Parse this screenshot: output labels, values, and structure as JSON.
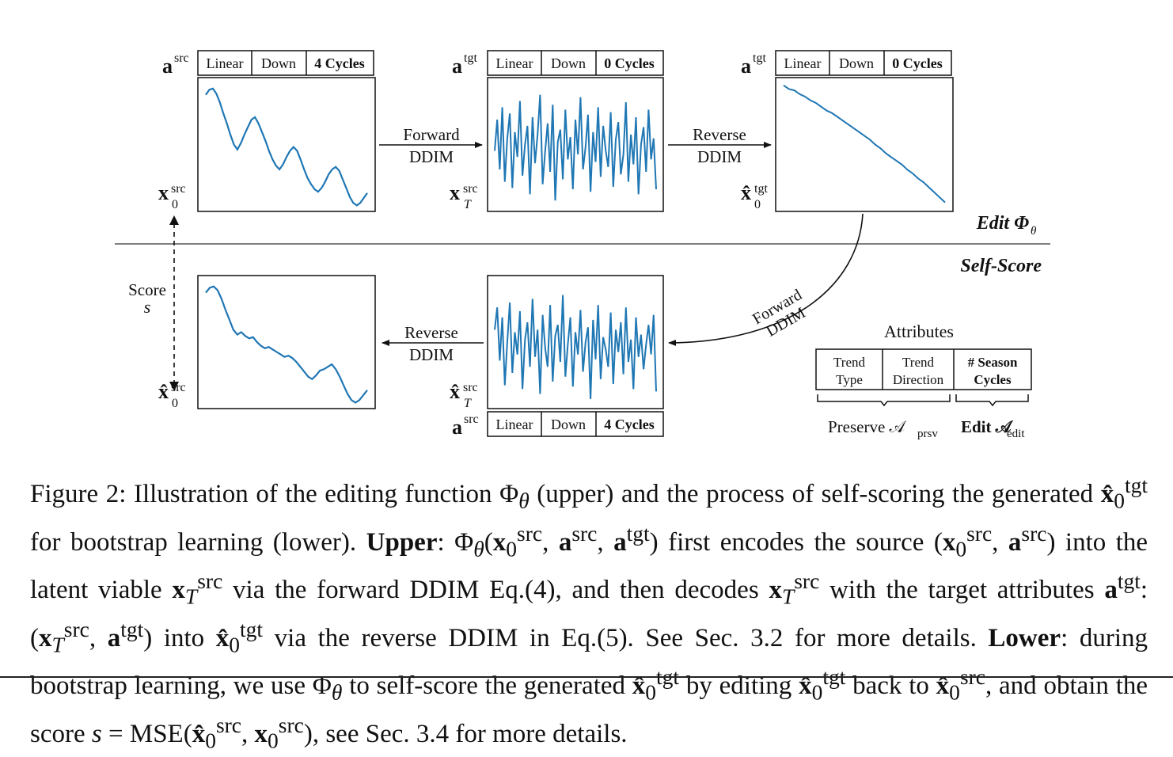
{
  "attr_labels": {
    "a_src": "a",
    "a_src_sup": "src",
    "a_tgt": "a",
    "a_tgt_sup": "tgt"
  },
  "attr_tables": {
    "top_left": [
      "Linear",
      "Down",
      "4 Cycles"
    ],
    "top_mid": [
      "Linear",
      "Down",
      "0 Cycles"
    ],
    "top_right": [
      "Linear",
      "Down",
      "0 Cycles"
    ],
    "bottom_mid": [
      "Linear",
      "Down",
      "4 Cycles"
    ]
  },
  "series_labels": {
    "x0_src": {
      "base": "x",
      "sup": "src",
      "sub": "0"
    },
    "xT_src": {
      "base": "x",
      "sup": "src",
      "sub": "T"
    },
    "x0hat_tgt": {
      "base": "x̂",
      "sup": "tgt",
      "sub": "0"
    },
    "x0hat_src": {
      "base": "x̂",
      "sup": "src",
      "sub": "0"
    },
    "xThat_src": {
      "base": "x̂",
      "sup": "src",
      "sub": "T"
    }
  },
  "arrows": {
    "forward_top": [
      "Forward",
      "DDIM"
    ],
    "reverse_top": [
      "Reverse",
      "DDIM"
    ],
    "reverse_bottom": [
      "Reverse",
      "DDIM"
    ],
    "forward_curved": [
      "Forward",
      "DDIM"
    ]
  },
  "sections": {
    "edit": "Edit Φ",
    "edit_sub": "θ",
    "self_score": "Self-Score"
  },
  "score": {
    "label": "Score",
    "symbol": "s"
  },
  "attributes": {
    "title": "Attributes",
    "cells": [
      [
        "Trend",
        "Type"
      ],
      [
        "Trend",
        "Direction"
      ],
      [
        "# Season",
        "Cycles"
      ]
    ],
    "preserve": "Preserve 𝒜",
    "preserve_sub": "prsv",
    "edit": "Edit 𝒜",
    "edit_sub": "edit"
  },
  "caption": {
    "figure_label": "Figure 2:",
    "text_1": "Illustration of the editing function Φ",
    "text_2": "(upper) and the process of self-scoring the generated",
    "text_3": "for bootstrap learning (lower).",
    "upper_label": "Upper",
    "text_4": "first encodes the source",
    "text_5": "into the latent viable",
    "text_6": "via the forward DDIM Eq.(4), and then decodes",
    "text_7": "with the target attributes",
    "text_8": "into",
    "text_9": "via the reverse DDIM in Eq.(5). See Sec. 3.2 for more details.",
    "lower_label": "Lower",
    "text_10": "during bootstrap learning, we use Φ",
    "text_11": "to self-score the generated",
    "text_12": "by editing",
    "text_13": "back to",
    "text_14": ", and obtain the score",
    "text_15": ", see Sec. 3.4 for more details."
  },
  "series": {
    "src_seasonal": [
      0.1,
      0.06,
      0.05,
      0.09,
      0.16,
      0.25,
      0.33,
      0.42,
      0.5,
      0.54,
      0.49,
      0.42,
      0.36,
      0.3,
      0.28,
      0.33,
      0.4,
      0.47,
      0.55,
      0.62,
      0.67,
      0.7,
      0.66,
      0.6,
      0.55,
      0.52,
      0.55,
      0.62,
      0.7,
      0.77,
      0.82,
      0.86,
      0.88,
      0.85,
      0.8,
      0.74,
      0.7,
      0.68,
      0.71,
      0.78,
      0.85,
      0.92,
      0.97,
      0.99,
      0.97,
      0.93,
      0.89
    ],
    "src_recon": [
      0.1,
      0.06,
      0.05,
      0.08,
      0.15,
      0.24,
      0.32,
      0.4,
      0.44,
      0.42,
      0.45,
      0.47,
      0.46,
      0.5,
      0.53,
      0.55,
      0.54,
      0.56,
      0.58,
      0.6,
      0.62,
      0.61,
      0.63,
      0.66,
      0.7,
      0.74,
      0.78,
      0.8,
      0.77,
      0.73,
      0.72,
      0.7,
      0.68,
      0.72,
      0.78,
      0.85,
      0.92,
      0.97,
      0.99,
      0.97,
      0.93,
      0.89
    ],
    "trend_down": [
      0.03,
      0.06,
      0.07,
      0.1,
      0.12,
      0.15,
      0.17,
      0.2,
      0.23,
      0.25,
      0.28,
      0.31,
      0.34,
      0.37,
      0.4,
      0.43,
      0.46,
      0.5,
      0.53,
      0.57,
      0.6,
      0.63,
      0.66,
      0.7,
      0.73,
      0.77,
      0.8,
      0.84,
      0.88,
      0.92,
      0.96
    ],
    "noise_top": [
      0.55,
      0.3,
      0.7,
      0.2,
      0.8,
      0.45,
      0.25,
      0.85,
      0.4,
      0.6,
      0.15,
      0.75,
      0.5,
      0.35,
      0.9,
      0.28,
      0.65,
      0.42,
      0.1,
      0.82,
      0.55,
      0.33,
      0.72,
      0.18,
      0.95,
      0.48,
      0.38,
      0.78,
      0.22,
      0.62,
      0.44,
      0.86,
      0.3,
      0.58,
      0.12,
      0.7,
      0.52,
      0.26,
      0.88,
      0.4,
      0.64,
      0.2,
      0.76,
      0.35,
      0.55,
      0.68,
      0.24,
      0.84,
      0.46,
      0.32,
      0.74,
      0.58,
      0.16,
      0.8,
      0.42,
      0.66,
      0.28,
      0.9,
      0.5,
      0.36,
      0.72,
      0.22,
      0.62,
      0.45,
      0.86
    ],
    "noise_bottom": [
      0.4,
      0.22,
      0.65,
      0.3,
      0.85,
      0.5,
      0.18,
      0.75,
      0.42,
      0.6,
      0.25,
      0.88,
      0.48,
      0.34,
      0.7,
      0.15,
      0.62,
      0.4,
      0.92,
      0.28,
      0.55,
      0.7,
      0.2,
      0.82,
      0.45,
      0.36,
      0.66,
      0.12,
      0.78,
      0.52,
      0.3,
      0.86,
      0.42,
      0.6,
      0.24,
      0.74,
      0.5,
      0.38,
      0.96,
      0.32,
      0.64,
      0.2,
      0.8,
      0.46,
      0.56,
      0.7,
      0.26,
      0.84,
      0.4,
      0.58,
      0.34,
      0.76,
      0.22,
      0.66,
      0.48,
      0.88,
      0.3,
      0.62,
      0.44,
      0.72,
      0.52,
      0.36,
      0.6,
      0.28,
      0.9
    ]
  }
}
